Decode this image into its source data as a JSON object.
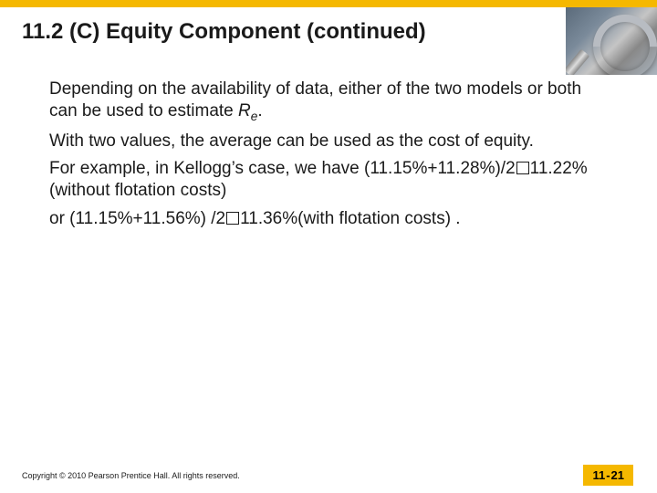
{
  "colors": {
    "accent": "#f5b800",
    "text": "#1a1a1a",
    "background": "#ffffff"
  },
  "title": "11.2 (C)  Equity Component (continued)",
  "paragraphs": {
    "p1_a": "Depending on the availability of data, either of the two models or both can be used to estimate ",
    "p1_var": "R",
    "p1_sub": "e",
    "p1_b": ".",
    "p2": "With two values, the average can be used as the cost of equity.",
    "p3_a": "For example, in Kellogg’s case, we have (11.15%+11.28%)/2",
    "p3_b": "11.22% (without flotation costs)",
    "p4_a": "or (11.15%+11.56%) /2",
    "p4_b": "11.36%(with flotation costs) ."
  },
  "footer": {
    "copyright": "Copyright © 2010 Pearson Prentice Hall. All rights reserved.",
    "page_prefix": "11",
    "page_suffix": "21"
  }
}
